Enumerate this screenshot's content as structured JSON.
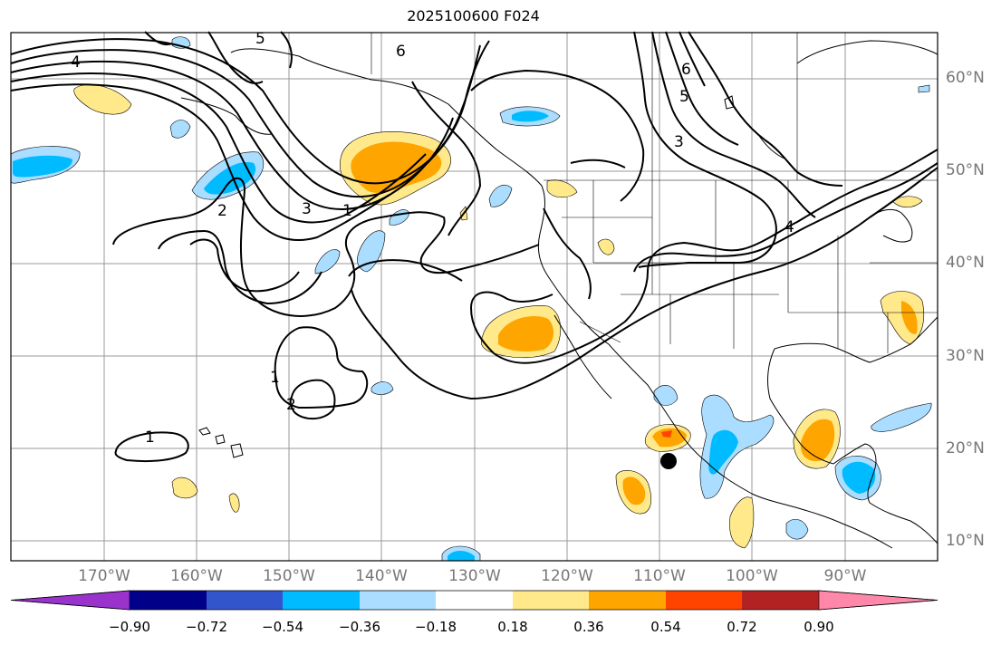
{
  "title": "2025100600 F024",
  "latitude_labels": [
    "60°N",
    "50°N",
    "40°N",
    "30°N",
    "20°N",
    "10°N"
  ],
  "longitude_labels": [
    "170°W",
    "160°W",
    "150°W",
    "140°W",
    "130°W",
    "120°W",
    "110°W",
    "100°W",
    "90°W"
  ],
  "contour_labels": [
    "4",
    "6",
    "5",
    "6",
    "5",
    "3",
    "2",
    "3",
    "1",
    "1",
    "2",
    "1",
    "4"
  ],
  "colorbar": {
    "ticks": [
      "−0.90",
      "−0.72",
      "−0.54",
      "−0.36",
      "−0.18",
      "0.18",
      "0.36",
      "0.54",
      "0.72",
      "0.90"
    ],
    "colors": [
      "#9933cc",
      "#000088",
      "#3355cc",
      "#00bbff",
      "#aaddff",
      "#ffffff",
      "#ffe98a",
      "#ffa500",
      "#ff4400",
      "#b22222",
      "#ff88aa"
    ]
  },
  "icons": {
    "marker": "storm-position-dot"
  }
}
